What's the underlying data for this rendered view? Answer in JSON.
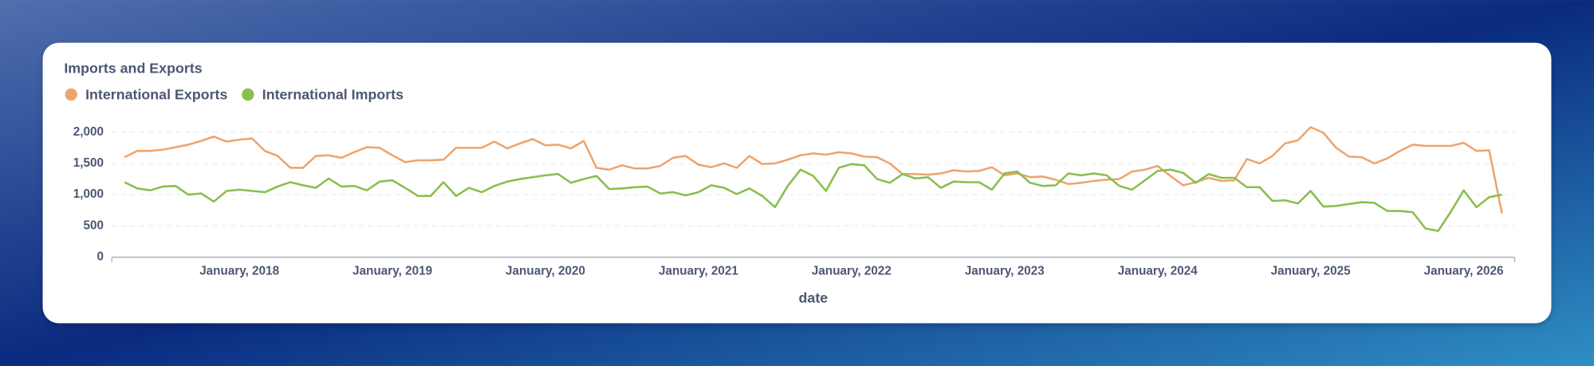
{
  "chart_data": {
    "type": "line",
    "title": "Imports and Exports",
    "xlabel": "date",
    "x": [
      "2017-04",
      "2017-05",
      "2017-06",
      "2017-07",
      "2017-08",
      "2017-09",
      "2017-10",
      "2017-11",
      "2017-12",
      "2018-01",
      "2018-02",
      "2018-03",
      "2018-04",
      "2018-05",
      "2018-06",
      "2018-07",
      "2018-08",
      "2018-09",
      "2018-10",
      "2018-11",
      "2018-12",
      "2019-01",
      "2019-02",
      "2019-03",
      "2019-04",
      "2019-05",
      "2019-06",
      "2019-07",
      "2019-08",
      "2019-09",
      "2019-10",
      "2019-11",
      "2019-12",
      "2020-01",
      "2020-02",
      "2020-03",
      "2020-04",
      "2020-05",
      "2020-06",
      "2020-07",
      "2020-08",
      "2020-09",
      "2020-10",
      "2020-11",
      "2020-12",
      "2021-01",
      "2021-02",
      "2021-03",
      "2021-04",
      "2021-05",
      "2021-06",
      "2021-07",
      "2021-08",
      "2021-09",
      "2021-10",
      "2021-11",
      "2021-12",
      "2022-01",
      "2022-02",
      "2022-03",
      "2022-04",
      "2022-05",
      "2022-06",
      "2022-07",
      "2022-08",
      "2022-09",
      "2022-10",
      "2022-11",
      "2022-12",
      "2023-01",
      "2023-02",
      "2023-03",
      "2023-04",
      "2023-05",
      "2023-06",
      "2023-07",
      "2023-08",
      "2023-09",
      "2023-10",
      "2023-11",
      "2023-12",
      "2024-01",
      "2024-02",
      "2024-03",
      "2024-04",
      "2024-05",
      "2024-06",
      "2024-07",
      "2024-08",
      "2024-09",
      "2024-10",
      "2024-11",
      "2024-12",
      "2025-01",
      "2025-02",
      "2025-03",
      "2025-04",
      "2025-05",
      "2025-06",
      "2025-07",
      "2025-08",
      "2025-09",
      "2025-10",
      "2025-11",
      "2025-12",
      "2026-01",
      "2026-02",
      "2026-03",
      "2026-04"
    ],
    "series": [
      {
        "name": "International Exports",
        "color": "#efa46c",
        "values": [
          1600,
          1700,
          1700,
          1720,
          1760,
          1800,
          1860,
          1930,
          1850,
          1880,
          1900,
          1700,
          1620,
          1430,
          1430,
          1620,
          1630,
          1590,
          1680,
          1760,
          1750,
          1630,
          1520,
          1550,
          1550,
          1560,
          1750,
          1750,
          1750,
          1850,
          1740,
          1820,
          1890,
          1790,
          1800,
          1740,
          1860,
          1430,
          1400,
          1470,
          1420,
          1420,
          1460,
          1590,
          1620,
          1480,
          1440,
          1500,
          1430,
          1620,
          1490,
          1500,
          1560,
          1630,
          1660,
          1640,
          1680,
          1660,
          1610,
          1600,
          1500,
          1330,
          1330,
          1320,
          1340,
          1390,
          1370,
          1380,
          1440,
          1310,
          1340,
          1280,
          1290,
          1240,
          1170,
          1190,
          1220,
          1240,
          1250,
          1370,
          1400,
          1460,
          1300,
          1150,
          1200,
          1270,
          1220,
          1230,
          1570,
          1500,
          1620,
          1820,
          1870,
          2080,
          1990,
          1750,
          1610,
          1600,
          1500,
          1580,
          1700,
          1800,
          1780,
          1780,
          1780,
          1830,
          1700,
          1710,
          700
        ]
      },
      {
        "name": "International Imports",
        "color": "#88bf4d",
        "values": [
          1200,
          1100,
          1070,
          1130,
          1140,
          1000,
          1020,
          890,
          1060,
          1080,
          1060,
          1040,
          1130,
          1200,
          1150,
          1110,
          1260,
          1130,
          1140,
          1070,
          1210,
          1230,
          1110,
          980,
          980,
          1200,
          980,
          1110,
          1040,
          1140,
          1210,
          1250,
          1280,
          1310,
          1330,
          1190,
          1250,
          1300,
          1090,
          1100,
          1120,
          1130,
          1020,
          1040,
          990,
          1040,
          1150,
          1110,
          1010,
          1100,
          980,
          800,
          1140,
          1400,
          1300,
          1060,
          1430,
          1490,
          1470,
          1250,
          1190,
          1330,
          1260,
          1280,
          1110,
          1210,
          1200,
          1200,
          1080,
          1340,
          1370,
          1190,
          1140,
          1150,
          1340,
          1310,
          1340,
          1310,
          1140,
          1080,
          1230,
          1380,
          1400,
          1350,
          1190,
          1330,
          1270,
          1270,
          1120,
          1120,
          900,
          910,
          860,
          1060,
          810,
          820,
          850,
          880,
          870,
          740,
          740,
          720,
          460,
          420,
          730,
          1070,
          800,
          960,
          1000
        ]
      }
    ],
    "xlim": [
      "2017-03",
      "2026-05"
    ],
    "xticks": [
      {
        "value": "2018-01",
        "label": "January, 2018"
      },
      {
        "value": "2019-01",
        "label": "January, 2019"
      },
      {
        "value": "2020-01",
        "label": "January, 2020"
      },
      {
        "value": "2021-01",
        "label": "January, 2021"
      },
      {
        "value": "2022-01",
        "label": "January, 2022"
      },
      {
        "value": "2023-01",
        "label": "January, 2023"
      },
      {
        "value": "2024-01",
        "label": "January, 2024"
      },
      {
        "value": "2025-01",
        "label": "January, 2025"
      },
      {
        "value": "2026-01",
        "label": "January, 2026"
      }
    ],
    "ylim": [
      0,
      2000
    ],
    "yticks": [
      0,
      500,
      {
        "value": 1000,
        "label": "1,000"
      },
      {
        "value": 1500,
        "label": "1,500"
      },
      {
        "value": 2000,
        "label": "2,000"
      }
    ],
    "grid": true
  }
}
